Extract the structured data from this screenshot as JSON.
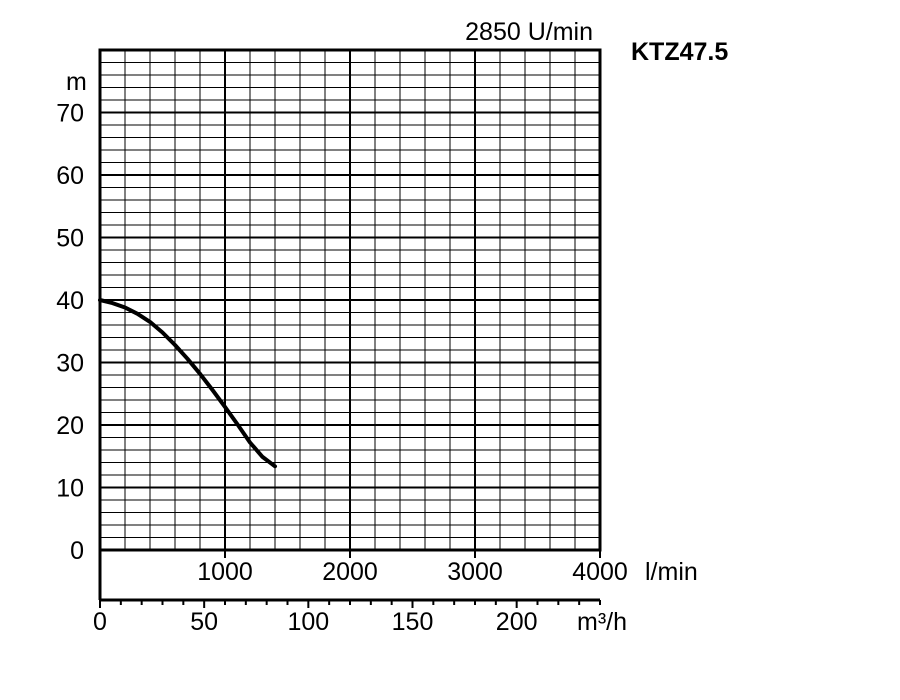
{
  "chart_data": {
    "type": "line",
    "title": "KTZ47.5",
    "speed_label": "2850 U/min",
    "ylabel": "m",
    "ylim": [
      0,
      80
    ],
    "y_ticks": [
      0,
      10,
      20,
      30,
      40,
      50,
      60,
      70
    ],
    "x_lmin": {
      "unit": "l/min",
      "range": [
        0,
        4000
      ],
      "ticks": [
        1000,
        2000,
        3000,
        4000
      ]
    },
    "x_m3h": {
      "unit": "m³/h",
      "range": [
        0,
        240
      ],
      "ticks": [
        0,
        50,
        100,
        150,
        200
      ]
    },
    "grid": true,
    "series": [
      {
        "color": "#000000",
        "x": [
          0,
          100,
          200,
          300,
          400,
          500,
          600,
          700,
          800,
          900,
          1000,
          1100,
          1200,
          1300,
          1400
        ],
        "y": [
          40,
          39.5,
          38.8,
          37.8,
          36.5,
          34.8,
          32.8,
          30.6,
          28.2,
          25.6,
          22.9,
          20.1,
          17.2,
          14.9,
          13.4
        ]
      }
    ]
  }
}
